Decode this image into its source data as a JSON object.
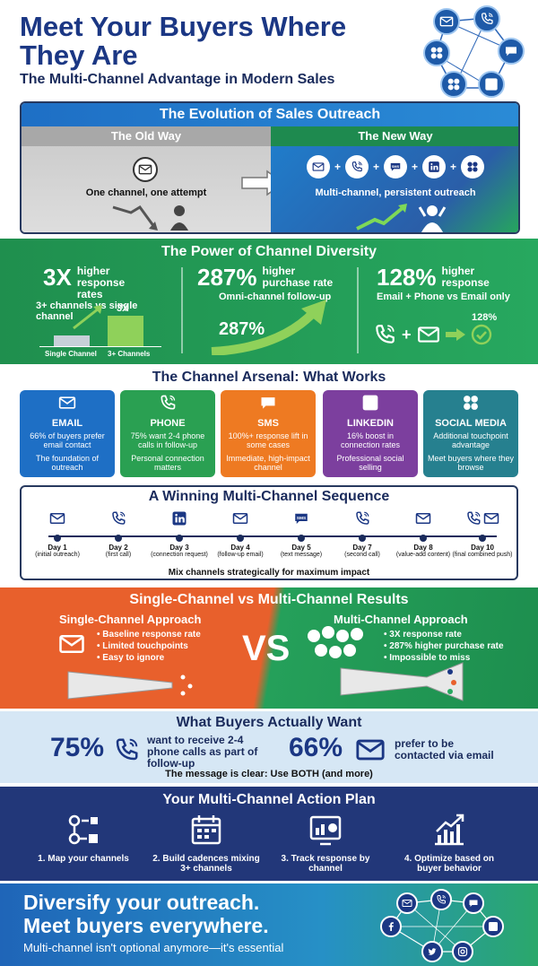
{
  "header": {
    "title": "Meet Your Buyers Where They Are",
    "subtitle": "The Multi-Channel Advantage in Modern Sales"
  },
  "evolution": {
    "title": "The Evolution of Sales Outreach",
    "old_label": "The Old Way",
    "old_caption": "One channel, one attempt",
    "new_label": "The New Way",
    "new_caption": "Multi-channel, persistent outreach"
  },
  "power": {
    "title": "The Power of Channel Diversity",
    "stat1": {
      "value": "3X",
      "label": "higher response rates",
      "desc": "3+ channels vs single channel",
      "bar_label": "3X",
      "bar_left": "Single Channel",
      "bar_right": "3+ Channels"
    },
    "stat2": {
      "value": "287%",
      "label": "higher purchase rate",
      "desc": "Omni-channel follow-up",
      "arrow_label": "287%"
    },
    "stat3": {
      "value": "128%",
      "label": "higher response",
      "desc": "Email + Phone vs Email only",
      "badge": "128%"
    }
  },
  "arsenal": {
    "title": "The Channel Arsenal: What Works",
    "cards": [
      {
        "name": "EMAIL",
        "d1": "66% of buyers prefer email contact",
        "d2": "The foundation of outreach",
        "color": "#1e6fc5",
        "icon": "envelope-icon"
      },
      {
        "name": "PHONE",
        "d1": "75% want 2-4 phone calls in follow-up",
        "d2": "Personal connection matters",
        "color": "#2aa052",
        "icon": "phone-icon"
      },
      {
        "name": "SMS",
        "d1": "100%+ response lift in some cases",
        "d2": "Immediate, high-impact channel",
        "color": "#ee7a22",
        "icon": "sms-icon"
      },
      {
        "name": "LINKEDIN",
        "d1": "16% boost in connection rates",
        "d2": "Professional social selling",
        "color": "#7c3f9e",
        "icon": "linkedin-icon"
      },
      {
        "name": "SOCIAL MEDIA",
        "d1": "Additional touchpoint advantage",
        "d2": "Meet buyers where they browse",
        "color": "#26808f",
        "icon": "social-icon"
      }
    ]
  },
  "sequence": {
    "title": "A Winning Multi-Channel Sequence",
    "footer": "Mix channels strategically for maximum impact",
    "steps": [
      {
        "day": "Day 1",
        "sub": "(initial outreach)",
        "icon": "envelope-icon"
      },
      {
        "day": "Day 2",
        "sub": "(first call)",
        "icon": "phone-icon"
      },
      {
        "day": "Day 3",
        "sub": "(connection request)",
        "icon": "linkedin-icon"
      },
      {
        "day": "Day 4",
        "sub": "(follow-up email)",
        "icon": "envelope-icon"
      },
      {
        "day": "Day 5",
        "sub": "(text message)",
        "icon": "sms-icon"
      },
      {
        "day": "Day 7",
        "sub": "(second call)",
        "icon": "phone-icon"
      },
      {
        "day": "Day 8",
        "sub": "(value-add content)",
        "icon": "envelope-icon"
      },
      {
        "day": "Day 10",
        "sub": "(final combined push)",
        "icon": "phone-envelope-icon"
      }
    ]
  },
  "results": {
    "title": "Single-Channel vs Multi-Channel Results",
    "single_title": "Single-Channel Approach",
    "single_bullets": [
      "Baseline response rate",
      "Limited touchpoints",
      "Easy to ignore"
    ],
    "vs": "VS",
    "multi_title": "Multi-Channel Approach",
    "multi_bullets": [
      "3X response rate",
      "287% higher purchase rate",
      "Impossible to miss"
    ]
  },
  "buyers": {
    "title": "What Buyers Actually Want",
    "stat1_value": "75%",
    "stat1_text": "want to receive 2-4 phone calls as part of follow-up",
    "stat2_value": "66%",
    "stat2_text": "prefer to be contacted via email",
    "message": "The message is clear: Use BOTH (and more)"
  },
  "plan": {
    "title": "Your Multi-Channel Action Plan",
    "items": [
      {
        "text": "1. Map your channels",
        "icon": "flow-icon"
      },
      {
        "text": "2. Build cadences mixing 3+ channels",
        "icon": "calendar-icon"
      },
      {
        "text": "3. Track response by channel",
        "icon": "analytics-icon"
      },
      {
        "text": "4. Optimize based on buyer behavior",
        "icon": "growth-chart-icon"
      }
    ]
  },
  "footer": {
    "line1": "Diversify your outreach.",
    "line2": "Meet buyers everywhere.",
    "tagline": "Multi-channel isn't optional anymore—it's essential"
  },
  "colors": {
    "navy": "#1b3784",
    "green": "#27a85f",
    "orange": "#e8602c",
    "blue": "#1e6fc5"
  }
}
